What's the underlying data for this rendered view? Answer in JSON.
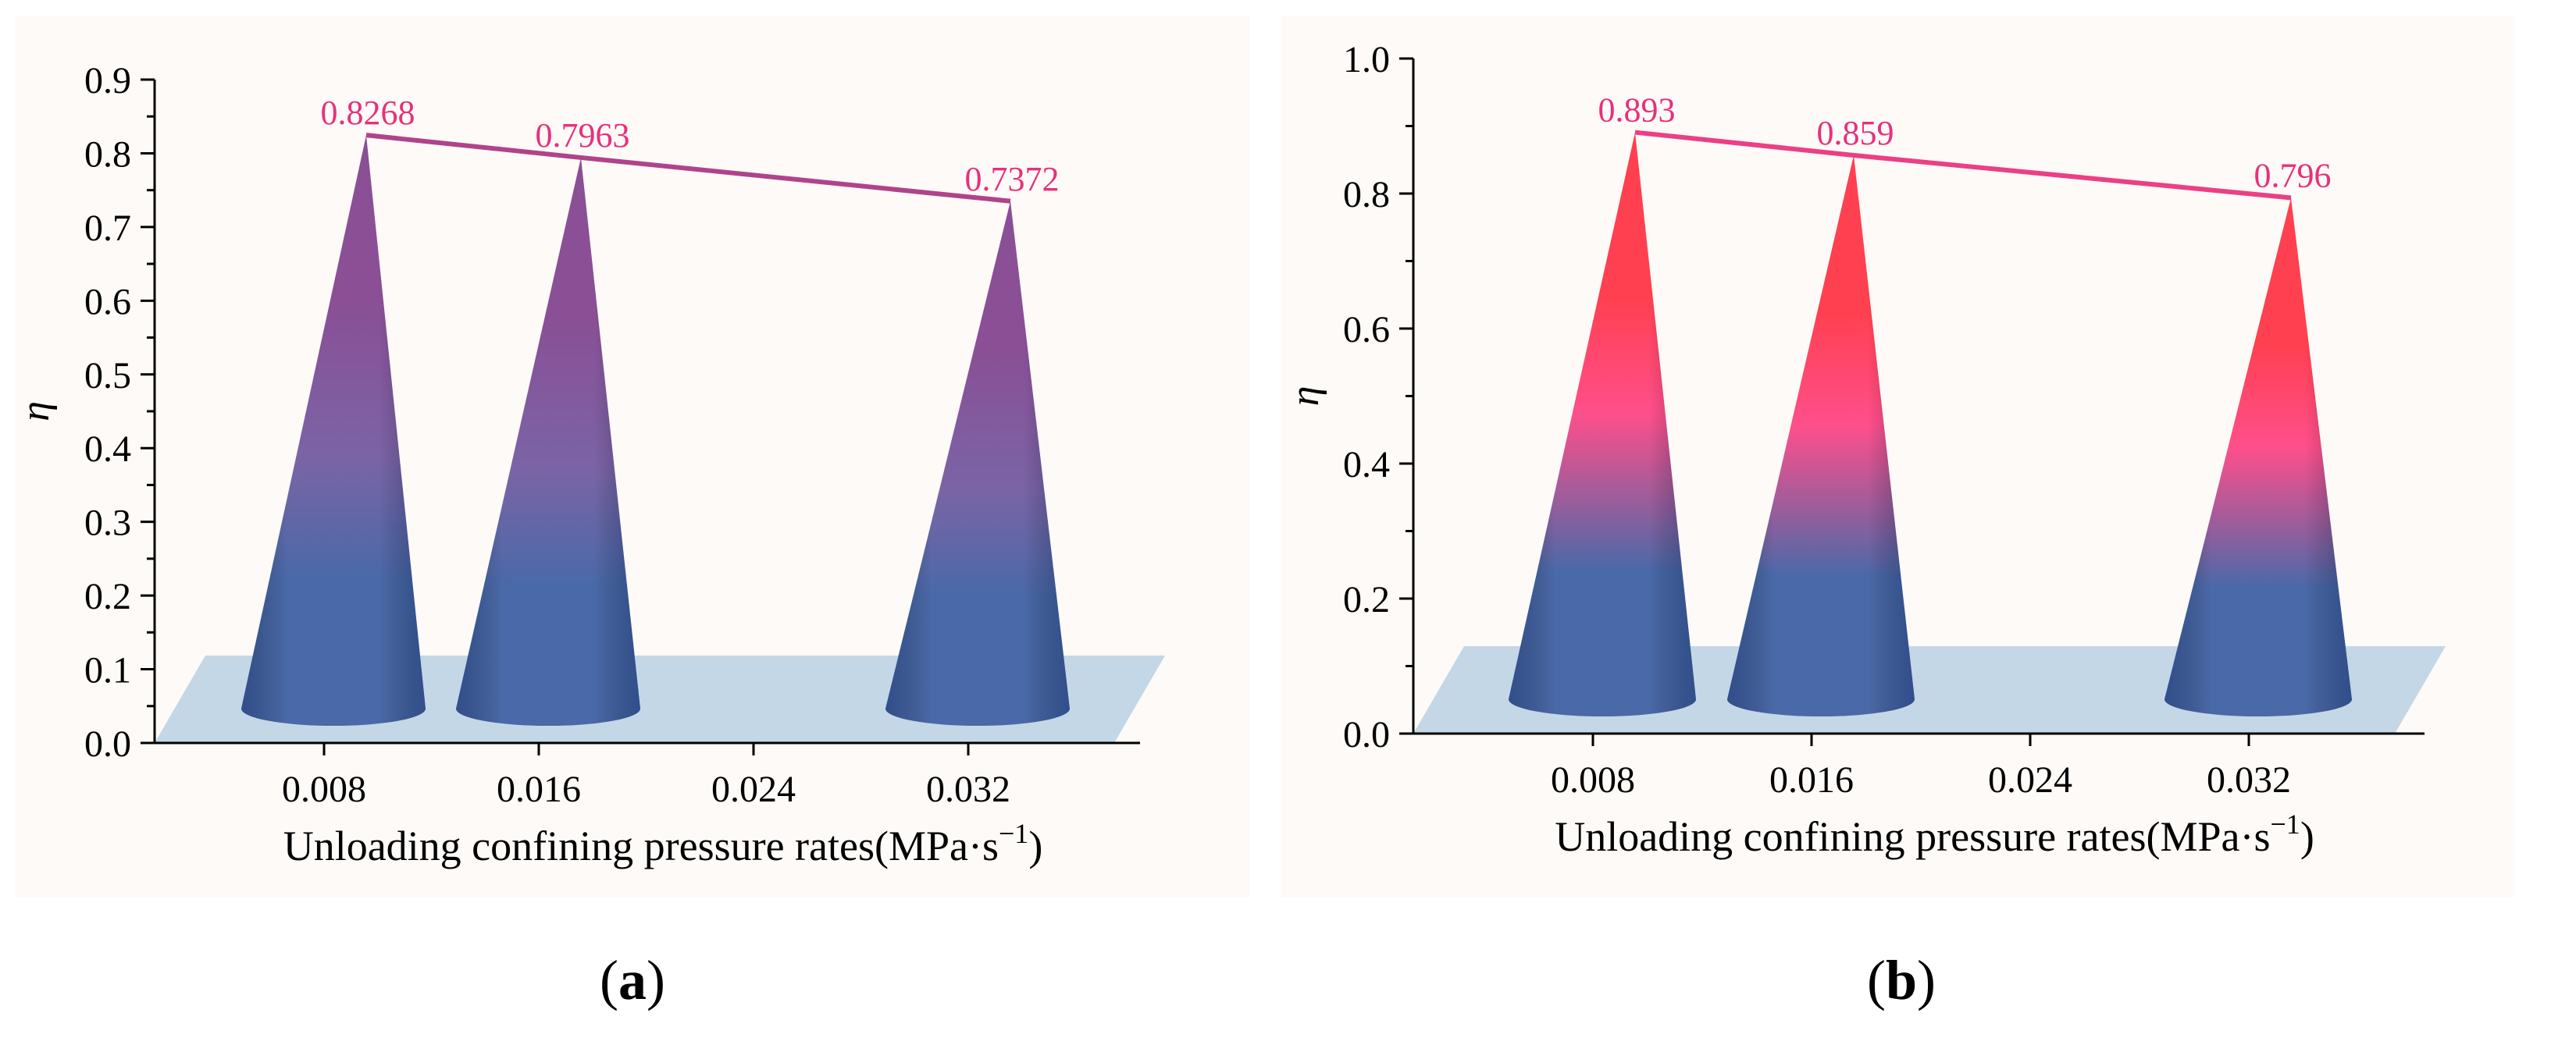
{
  "colors": {
    "line_a": "#b0438a",
    "line_b": "#ec3f84",
    "label": "#e8307a",
    "floor": "#bcd3e3",
    "cone_base": "#4a69a8",
    "cone_mid_a": "#7a64a6",
    "cone_top_a": "#8a4f95",
    "cone_mid_b": "#ff4f8b",
    "cone_top_b": "#ff4050"
  },
  "captions": {
    "a": "a",
    "b": "b"
  },
  "chart_data": [
    {
      "id": "a",
      "type": "bar",
      "mark": "cone",
      "categories": [
        "0.008",
        "0.016",
        "0.024",
        "0.032"
      ],
      "series": [
        {
          "name": "η",
          "x": [
            "0.008",
            "0.016",
            "0.032"
          ],
          "values": [
            0.8268,
            0.7963,
            0.7372
          ]
        }
      ],
      "data_labels": [
        "0.8268",
        "0.7963",
        "0.7372"
      ],
      "xlabel": "Unloading confining pressure rates(MPa·s",
      "xlabel_sup": "−1",
      "xlabel_close": ")",
      "ylabel": "η",
      "ylim": [
        0,
        0.9
      ],
      "yticks": [
        "0.0",
        "0.1",
        "0.2",
        "0.3",
        "0.4",
        "0.5",
        "0.6",
        "0.7",
        "0.8",
        "0.9"
      ]
    },
    {
      "id": "b",
      "type": "bar",
      "mark": "cone",
      "categories": [
        "0.008",
        "0.016",
        "0.024",
        "0.032"
      ],
      "series": [
        {
          "name": "η",
          "x": [
            "0.008",
            "0.016",
            "0.032"
          ],
          "values": [
            0.893,
            0.859,
            0.796
          ]
        }
      ],
      "data_labels": [
        "0.893",
        "0.859",
        "0.796"
      ],
      "xlabel": "Unloading confining pressure rates(MPa·s",
      "xlabel_sup": "−1",
      "xlabel_close": ")",
      "ylabel": "η",
      "ylim": [
        0,
        1.0
      ],
      "yticks": [
        "0.0",
        "0.2",
        "0.4",
        "0.6",
        "0.8",
        "1.0"
      ]
    }
  ]
}
